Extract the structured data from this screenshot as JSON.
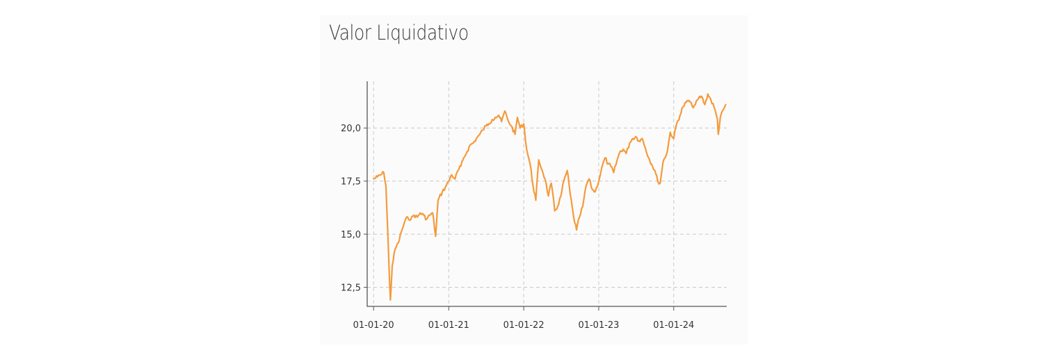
{
  "chart_data": {
    "type": "line",
    "title": "Valor Liquidativo",
    "xlabel": "",
    "ylabel": "",
    "x_tick_labels": [
      "01-01-20",
      "01-01-21",
      "01-01-22",
      "01-01-23",
      "01-01-24"
    ],
    "y_tick_labels": [
      "12,5",
      "15,0",
      "17,5",
      "20,0"
    ],
    "y_ticks": [
      12.5,
      15.0,
      17.5,
      20.0
    ],
    "ylim": [
      11.6,
      22.2
    ],
    "xlim": [
      "2019-12-01",
      "2024-09-15"
    ],
    "grid": true,
    "line_color": "#f59a3b",
    "series": [
      {
        "x": [
          "2020-01-01",
          "2020-01-20",
          "2020-02-05",
          "2020-02-20",
          "2020-03-01",
          "2020-03-10",
          "2020-03-18",
          "2020-03-23",
          "2020-04-01",
          "2020-04-15",
          "2020-05-01",
          "2020-05-15",
          "2020-06-01",
          "2020-06-15",
          "2020-07-01",
          "2020-07-15",
          "2020-08-01",
          "2020-08-15",
          "2020-09-01",
          "2020-09-15",
          "2020-10-01",
          "2020-10-15",
          "2020-10-29",
          "2020-11-10",
          "2020-12-01",
          "2020-12-15",
          "2021-01-01",
          "2021-01-15",
          "2021-02-01",
          "2021-02-15",
          "2021-03-01",
          "2021-03-15",
          "2021-04-01",
          "2021-04-15",
          "2021-05-01",
          "2021-05-15",
          "2021-06-01",
          "2021-06-15",
          "2021-07-01",
          "2021-07-15",
          "2021-08-01",
          "2021-08-15",
          "2021-09-01",
          "2021-09-15",
          "2021-10-01",
          "2021-10-15",
          "2021-11-01",
          "2021-11-20",
          "2021-12-01",
          "2021-12-15",
          "2022-01-01",
          "2022-01-15",
          "2022-02-01",
          "2022-02-15",
          "2022-03-01",
          "2022-03-15",
          "2022-04-01",
          "2022-04-15",
          "2022-05-01",
          "2022-05-15",
          "2022-06-01",
          "2022-06-15",
          "2022-07-01",
          "2022-07-15",
          "2022-08-01",
          "2022-08-15",
          "2022-09-01",
          "2022-09-15",
          "2022-09-29",
          "2022-10-15",
          "2022-11-01",
          "2022-11-15",
          "2022-12-01",
          "2022-12-15",
          "2023-01-01",
          "2023-01-15",
          "2023-02-01",
          "2023-02-15",
          "2023-03-01",
          "2023-03-15",
          "2023-04-01",
          "2023-04-15",
          "2023-05-01",
          "2023-05-15",
          "2023-06-01",
          "2023-06-15",
          "2023-07-01",
          "2023-07-15",
          "2023-08-01",
          "2023-08-15",
          "2023-09-01",
          "2023-09-15",
          "2023-10-01",
          "2023-10-15",
          "2023-10-27",
          "2023-11-10",
          "2023-12-01",
          "2023-12-15",
          "2024-01-01",
          "2024-01-15",
          "2024-02-01",
          "2024-02-15",
          "2024-03-01",
          "2024-03-15",
          "2024-04-01",
          "2024-04-15",
          "2024-05-01",
          "2024-05-15",
          "2024-06-01",
          "2024-06-15",
          "2024-07-01",
          "2024-07-15",
          "2024-08-01",
          "2024-08-05",
          "2024-08-15",
          "2024-09-01",
          "2024-09-10"
        ],
        "values": [
          17.6,
          17.7,
          17.8,
          17.9,
          17.3,
          15.2,
          13.0,
          11.9,
          13.5,
          14.3,
          14.6,
          15.1,
          15.6,
          15.8,
          15.7,
          15.9,
          15.8,
          16.0,
          15.9,
          15.7,
          15.9,
          16.0,
          14.9,
          16.6,
          17.0,
          17.2,
          17.5,
          17.8,
          17.6,
          18.0,
          18.2,
          18.6,
          18.9,
          19.2,
          19.3,
          19.5,
          19.7,
          19.9,
          20.1,
          20.2,
          20.4,
          20.5,
          20.6,
          20.3,
          20.8,
          20.4,
          20.1,
          19.7,
          20.5,
          20.0,
          20.2,
          19.0,
          18.3,
          17.3,
          16.6,
          18.5,
          18.0,
          17.6,
          16.8,
          17.4,
          16.1,
          16.3,
          16.8,
          17.5,
          18.0,
          16.9,
          15.8,
          15.2,
          15.8,
          16.3,
          17.3,
          17.6,
          17.1,
          17.0,
          17.5,
          18.1,
          18.6,
          18.3,
          18.2,
          17.9,
          18.5,
          18.9,
          19.0,
          18.8,
          19.3,
          19.5,
          19.6,
          19.4,
          19.5,
          19.1,
          18.6,
          18.3,
          18.0,
          17.5,
          17.4,
          18.4,
          18.9,
          19.8,
          19.5,
          20.2,
          20.6,
          21.0,
          21.2,
          21.3,
          21.0,
          21.1,
          21.4,
          21.5,
          21.1,
          21.6,
          21.3,
          21.0,
          20.4,
          19.7,
          20.5,
          20.9,
          21.1
        ]
      }
    ]
  }
}
